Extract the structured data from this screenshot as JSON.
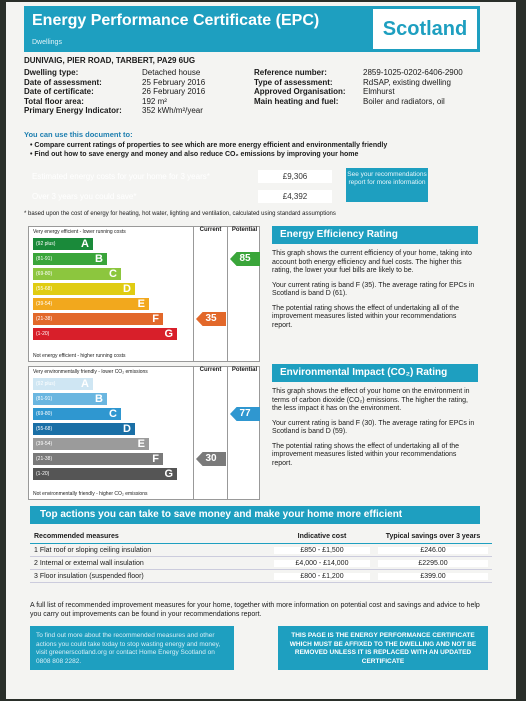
{
  "header": {
    "title": "Energy Performance Certificate (EPC)",
    "subtitle": "Dwellings",
    "country": "Scotland"
  },
  "address": "DUNIVAIG, PIER ROAD, TARBERT, PA29 6UG",
  "details_left": [
    {
      "label": "Dwelling type:",
      "value": "Detached house"
    },
    {
      "label": "Date of assessment:",
      "value": "25 February 2016"
    },
    {
      "label": "Date of certificate:",
      "value": "26 February 2016"
    },
    {
      "label": "Total floor area:",
      "value": "192 m²"
    },
    {
      "label": "Primary Energy Indicator:",
      "value": "352 kWh/m²/year"
    }
  ],
  "details_right": [
    {
      "label": "Reference number:",
      "value": "2859-1025-0202-6406-2900"
    },
    {
      "label": "Type of assessment:",
      "value": "RdSAP, existing dwelling"
    },
    {
      "label": "Approved Organisation:",
      "value": "Elmhurst"
    },
    {
      "label": "Main heating and fuel:",
      "value": "Boiler and radiators, oil"
    }
  ],
  "intro": "You can use this document to:",
  "bullets": [
    "Compare current ratings of properties to see which are more energy efficient and environmentally friendly",
    "Find out how to save energy and money and also reduce CO₂ emissions by improving your home"
  ],
  "costs": [
    {
      "label": "Estimated energy costs for your home for 3 years*",
      "value": "£9,306",
      "color": "#c8252d"
    },
    {
      "label": "Over 3 years you could save*",
      "value": "£4,392",
      "color": "#3b9a34"
    }
  ],
  "see_box": "See your recommendations report for more information",
  "cost_note": "* based upon the cost of energy for heating, hot water, lighting and ventilation, calculated using standard assumptions",
  "ee_chart": {
    "top_caption": "Very energy efficient - lower running costs",
    "bottom_caption": "Not energy efficient - higher running costs",
    "col_current": "Current",
    "col_potential": "Potential",
    "bands": [
      {
        "range": "(92 plus)",
        "letter": "A",
        "color": "#1a8a3a"
      },
      {
        "range": "(81-91)",
        "letter": "B",
        "color": "#3aa53a"
      },
      {
        "range": "(69-80)",
        "letter": "C",
        "color": "#8cc63e"
      },
      {
        "range": "(55-68)",
        "letter": "D",
        "color": "#e0cc12"
      },
      {
        "range": "(39-54)",
        "letter": "E",
        "color": "#f2a81d"
      },
      {
        "range": "(21-38)",
        "letter": "F",
        "color": "#e2682a"
      },
      {
        "range": "(1-20)",
        "letter": "G",
        "color": "#d81f2a"
      }
    ],
    "current": "35",
    "potential": "85",
    "current_band_color": "#e2682a",
    "potential_band_color": "#3aa53a"
  },
  "ei_chart": {
    "top_caption": "Very environmentally friendly - lower CO₂ emissions",
    "bottom_caption": "Not environmentally friendly - higher CO₂ emissions",
    "col_current": "Current",
    "col_potential": "Potential",
    "bands": [
      {
        "range": "(92 plus)",
        "letter": "A",
        "color": "#cfe6f3"
      },
      {
        "range": "(81-91)",
        "letter": "B",
        "color": "#6ab6e0"
      },
      {
        "range": "(69-80)",
        "letter": "C",
        "color": "#2f97d0"
      },
      {
        "range": "(55-68)",
        "letter": "D",
        "color": "#1a6fa6"
      },
      {
        "range": "(39-54)",
        "letter": "E",
        "color": "#9b9b9b"
      },
      {
        "range": "(21-38)",
        "letter": "F",
        "color": "#7a7a7a"
      },
      {
        "range": "(1-20)",
        "letter": "G",
        "color": "#555555"
      }
    ],
    "current": "30",
    "potential": "77",
    "current_band_color": "#7a7a7a",
    "potential_band_color": "#2f97d0"
  },
  "ee_section": {
    "title": "Energy Efficiency Rating",
    "p1": "This graph shows the current efficiency of your home, taking into account both energy efficiency and fuel costs. The higher this rating, the lower your fuel bills are likely to be.",
    "p2": "Your current rating is band F (35). The average rating for EPCs in Scotland is band D (61).",
    "p3": "The potential rating shows the effect of undertaking all of the improvement measures listed within your recommendations report."
  },
  "ei_section": {
    "title": "Environmental Impact (CO₂) Rating",
    "p1": "This graph shows the effect of your home on the environment in terms of carbon dioxide (CO₂) emissions. The higher the rating, the less impact it has on the environment.",
    "p2": "Your current rating is band F (30). The average rating for EPCs in Scotland is band D (59).",
    "p3": "The potential rating shows the effect of undertaking all of the improvement measures listed within your recommendations report."
  },
  "top_actions": {
    "title": "Top actions you can take to save money and make your home more efficient",
    "headers": [
      "Recommended measures",
      "Indicative cost",
      "Typical savings over 3 years"
    ],
    "rows": [
      [
        "1 Flat roof or sloping ceiling insulation",
        "£850 - £1,500",
        "£246.00"
      ],
      [
        "2 Internal or external wall insulation",
        "£4,000 - £14,000",
        "£2295.00"
      ],
      [
        "3 Floor insulation (suspended floor)",
        "£800 - £1,200",
        "£399.00"
      ]
    ]
  },
  "footer_text": "A full list of recommended improvement measures for your home, together with more information on potential cost and savings and advice to help you carry out improvements can be found in your recommendations report.",
  "footer_left": "To find out more about the recommended measures and other actions you could take today to stop wasting energy and money, visit greenerscotland.org or contact Home Energy Scotland on 0808 808 2282.",
  "footer_right": "THIS PAGE IS THE ENERGY PERFORMANCE CERTIFICATE WHICH MUST BE AFFIXED TO THE DWELLING AND NOT BE REMOVED UNLESS IT IS REPLACED WITH AN UPDATED CERTIFICATE"
}
